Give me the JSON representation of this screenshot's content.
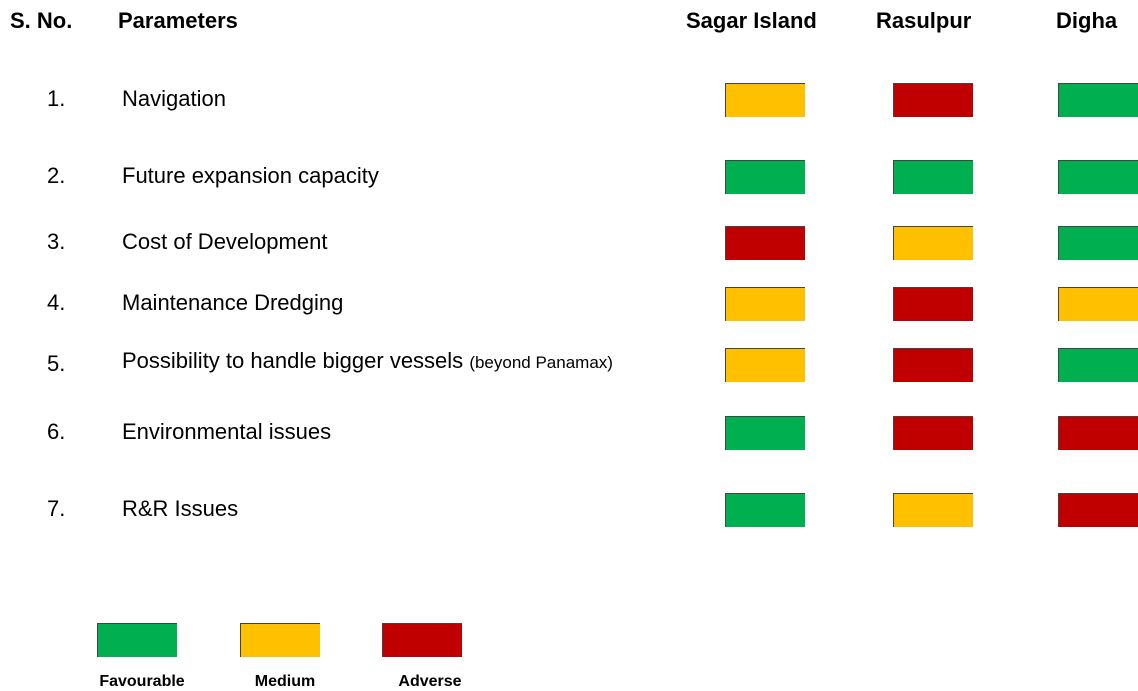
{
  "header": [
    "S. No.",
    "Parameters",
    "Sagar Island",
    "Rasulpur",
    "Digha"
  ],
  "rows": [
    {
      "sno": "1.",
      "parameter": "Navigation",
      "ratings": [
        "Medium",
        "Adverse",
        "Favourable"
      ]
    },
    {
      "sno": "2.",
      "parameter": "Future expansion capacity",
      "ratings": [
        "Favourable",
        "Favourable",
        "Favourable"
      ]
    },
    {
      "sno": "3.",
      "parameter": "Cost of Development",
      "ratings": [
        "Adverse",
        "Medium",
        "Favourable"
      ]
    },
    {
      "sno": "4.",
      "parameter": "Maintenance Dredging",
      "ratings": [
        "Medium",
        "Adverse",
        "Medium"
      ]
    },
    {
      "sno": "5.",
      "parameter": "Possibility to handle bigger vessels",
      "note": "(beyond Panamax)",
      "ratings": [
        "Medium",
        "Adverse",
        "Favourable"
      ]
    },
    {
      "sno": "6.",
      "parameter": "Environmental issues",
      "ratings": [
        "Favourable",
        "Adverse",
        "Adverse"
      ]
    },
    {
      "sno": "7.",
      "parameter": "R&R Issues",
      "ratings": [
        "Favourable",
        "Medium",
        "Adverse"
      ]
    }
  ],
  "legend": [
    {
      "label": "Favourable",
      "color": "#00b050"
    },
    {
      "label": "Medium",
      "color": "#ffc000"
    },
    {
      "label": "Adverse",
      "color": "#c00000"
    }
  ]
}
